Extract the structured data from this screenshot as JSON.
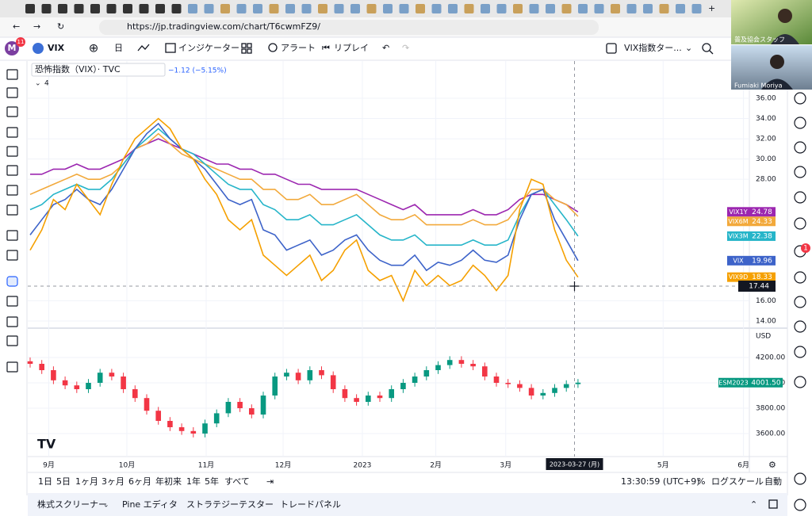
{
  "browser": {
    "url": "https://jp.tradingview.com/chart/T6cwmFZ9/"
  },
  "toolbar": {
    "avatar": "M",
    "badge": "11",
    "symbol": "VIX",
    "interval": "日",
    "indicators": "インジケーター",
    "alert": "アラート",
    "replay": "リプレイ",
    "layout": "VIX指数ター..."
  },
  "legend": {
    "title": "恐怖指数（VIX）· TVC",
    "change": "−1.12 (−5.15%)",
    "count": "4"
  },
  "chart_data": [
    {
      "type": "line",
      "xlim": [
        0,
        61.7
      ],
      "xticks": [
        {
          "value": 1.6,
          "label": "9月"
        },
        {
          "value": 8.3,
          "label": "10月"
        },
        {
          "value": 15.1,
          "label": "11月"
        },
        {
          "value": 21.7,
          "label": "12月"
        },
        {
          "value": 28.5,
          "label": "2023"
        },
        {
          "value": 34.8,
          "label": "2月"
        },
        {
          "value": 40.8,
          "label": "3月"
        },
        {
          "value": 54.3,
          "label": "5月"
        },
        {
          "value": 61.2,
          "label": "6月"
        }
      ],
      "ylim": [
        13.37,
        39.6
      ],
      "yticks": [
        {
          "value": 14,
          "label": "14.00"
        },
        {
          "value": 16,
          "label": "16.00"
        },
        {
          "value": 28,
          "label": "28.00"
        },
        {
          "value": 30,
          "label": "30.00"
        },
        {
          "value": 32,
          "label": "32.00"
        },
        {
          "value": 34,
          "label": "34.00"
        },
        {
          "value": 36,
          "label": "36.00"
        }
      ],
      "grid": true,
      "crosshair": {
        "x": {
          "value": 46.7,
          "label": "2023-03-27 (月)"
        },
        "y": 17.44
      },
      "series": [
        {
          "name": "VIX1Y",
          "color": "#9c27b0",
          "values": [
            28.5,
            28.5,
            29,
            29,
            29.5,
            29,
            29,
            29.5,
            30,
            31,
            31.5,
            32,
            31.5,
            31,
            30.5,
            30,
            29.5,
            29.5,
            29,
            29,
            28.5,
            28.5,
            28,
            27.5,
            27.5,
            27,
            27,
            27,
            27,
            26.5,
            26,
            25.5,
            25,
            25.5,
            24.5,
            24.5,
            24.5,
            24.5,
            25,
            24.5,
            24.5,
            25,
            26,
            26.5,
            26.5,
            26,
            25.5,
            24.78
          ]
        },
        {
          "name": "VIX6M",
          "color": "#f2a93b",
          "values": [
            26.5,
            27,
            27.5,
            28,
            28.5,
            28,
            28,
            28.5,
            29.5,
            31,
            31.5,
            32.5,
            31.5,
            30.5,
            30,
            29.5,
            29,
            28.5,
            28,
            28,
            27,
            27,
            26,
            26,
            26.5,
            25.5,
            25.5,
            26,
            26.5,
            25.5,
            24.5,
            24,
            24,
            24.5,
            23.5,
            23.5,
            23.5,
            23.5,
            24,
            23.5,
            23.5,
            24,
            25.5,
            27,
            27,
            26,
            25.5,
            24.33
          ]
        },
        {
          "name": "VIX3M",
          "color": "#26b5c9",
          "values": [
            25,
            25.5,
            26.5,
            27,
            27.5,
            27,
            27,
            28,
            29.5,
            31,
            32,
            33,
            32,
            31,
            30.5,
            29.5,
            28.5,
            27.5,
            27,
            27,
            25.5,
            25,
            24,
            24,
            24.5,
            23.5,
            23.5,
            24,
            24.5,
            23.5,
            22.5,
            22,
            22,
            22.5,
            21.5,
            21.5,
            21.5,
            21.5,
            22,
            21.5,
            21.5,
            22,
            24.5,
            26.5,
            27,
            25.5,
            24,
            22.38
          ]
        },
        {
          "name": "VIX",
          "color": "#3d63c9",
          "values": [
            22.5,
            24,
            25.5,
            26,
            27,
            26,
            25.5,
            27,
            29,
            31,
            32.5,
            33.5,
            32,
            31,
            30,
            29,
            27.5,
            26,
            25.5,
            26,
            23,
            22.5,
            21,
            21.5,
            22,
            20.5,
            21,
            22,
            22.5,
            21,
            20,
            19.5,
            19.5,
            20.5,
            19,
            19.8,
            19.5,
            20,
            21,
            20,
            19.8,
            20.5,
            24,
            26.5,
            27,
            24,
            22,
            19.96
          ]
        },
        {
          "name": "VIX9D",
          "color": "#f5a000",
          "values": [
            21,
            23,
            26,
            25,
            27.5,
            26,
            24.5,
            27.5,
            30,
            32,
            33,
            34,
            33,
            31,
            30,
            28,
            26.5,
            24,
            23,
            24,
            20.5,
            19.5,
            18.5,
            19.5,
            20.5,
            18,
            19,
            21,
            22,
            19,
            18,
            18.5,
            16,
            19,
            17.5,
            18.5,
            17.5,
            18,
            19.5,
            18.5,
            17,
            18.5,
            25,
            28,
            27.5,
            23,
            20,
            18.33
          ]
        }
      ]
    },
    {
      "type": "candlestick",
      "name": "ESM2023",
      "currency": "USD",
      "xlim": [
        0,
        61.7
      ],
      "ylim": [
        3425,
        4425
      ],
      "yticks": [
        {
          "value": 3600,
          "label": "3600.00"
        },
        {
          "value": 3800,
          "label": "3800.00"
        },
        {
          "value": 4000,
          "label": "4000.00"
        },
        {
          "value": 4200,
          "label": "4200.00"
        }
      ],
      "up_color": "#089981",
      "down_color": "#f23645",
      "open": [
        4170,
        4150,
        4100,
        4020,
        3980,
        3950,
        4000,
        4080,
        4050,
        3950,
        3880,
        3780,
        3700,
        3650,
        3620,
        3600,
        3680,
        3760,
        3850,
        3800,
        3750,
        3900,
        4050,
        4080,
        4020,
        4100,
        4060,
        3950,
        3880,
        3850,
        3900,
        3880,
        3950,
        4000,
        4050,
        4100,
        4140,
        4180,
        4150,
        4130,
        4050,
        4000,
        3990,
        3960,
        3900,
        3920,
        3960,
        3990
      ],
      "high": [
        4200,
        4180,
        4130,
        4050,
        4010,
        4030,
        4110,
        4110,
        4080,
        3980,
        3910,
        3810,
        3730,
        3680,
        3650,
        3710,
        3790,
        3880,
        3880,
        3830,
        3930,
        4080,
        4110,
        4110,
        4130,
        4130,
        4090,
        3980,
        3910,
        3930,
        3930,
        3980,
        4030,
        4080,
        4130,
        4170,
        4210,
        4210,
        4180,
        4160,
        4080,
        4030,
        4020,
        3990,
        3950,
        3990,
        4020,
        4030
      ],
      "low": [
        4120,
        4070,
        3990,
        3950,
        3920,
        3920,
        3970,
        4020,
        3920,
        3850,
        3750,
        3670,
        3620,
        3590,
        3570,
        3570,
        3650,
        3730,
        3770,
        3720,
        3720,
        3870,
        4020,
        3990,
        3990,
        4030,
        3920,
        3850,
        3820,
        3820,
        3850,
        3850,
        3920,
        3970,
        4020,
        4070,
        4110,
        4120,
        4100,
        4020,
        3970,
        3960,
        3930,
        3870,
        3870,
        3890,
        3930,
        3960
      ],
      "close": [
        4150,
        4100,
        4020,
        3980,
        3950,
        4000,
        4080,
        4050,
        3950,
        3880,
        3780,
        3700,
        3650,
        3620,
        3600,
        3680,
        3760,
        3850,
        3800,
        3750,
        3900,
        4050,
        4080,
        4020,
        4100,
        4060,
        3950,
        3880,
        3850,
        3900,
        3880,
        3950,
        4000,
        4050,
        4100,
        4140,
        4180,
        4150,
        4130,
        4050,
        4000,
        3990,
        3960,
        3900,
        3920,
        3960,
        3990,
        4001.5
      ],
      "last_value_label": "4001.50"
    }
  ],
  "range_bar": {
    "buttons": [
      "1日",
      "5日",
      "1ヶ月",
      "3ヶ月",
      "6ヶ月",
      "年初来",
      "1年",
      "5年",
      "すべて"
    ],
    "clock": "13:30:59 (UTC+9)",
    "percent": "%",
    "log": "ログスケール",
    "auto": "自動"
  },
  "bottom_panel": {
    "tabs": [
      "株式スクリーナー",
      "Pine エディタ",
      "ストラテジーテスター",
      "トレードパネル"
    ]
  },
  "webcam": {
    "top": "普及協会スタッフ",
    "bottom": "Fumiaki Moriya"
  },
  "notification_badge": "1"
}
